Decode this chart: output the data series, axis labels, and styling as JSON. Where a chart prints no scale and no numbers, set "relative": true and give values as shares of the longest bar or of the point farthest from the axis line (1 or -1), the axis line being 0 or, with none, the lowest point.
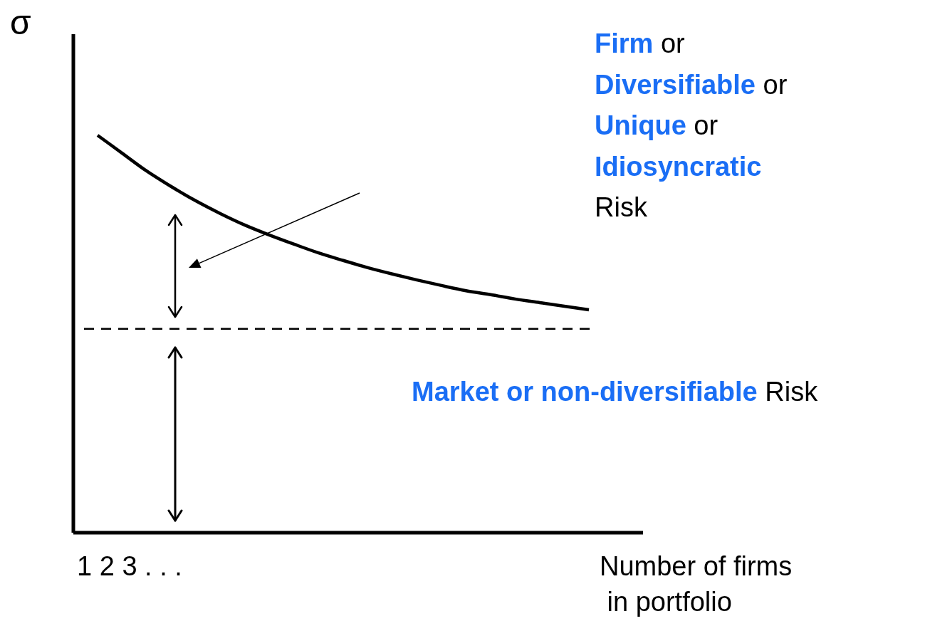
{
  "chart_data": {
    "type": "line",
    "relative": true,
    "ylabel": "σ",
    "xlabel": "Number of firms\n in portfolio",
    "color": "#000000",
    "line_style": "solid",
    "categories": [
      null,
      null,
      null,
      null,
      null,
      null,
      null,
      null,
      null,
      null,
      null,
      null,
      null,
      null,
      null,
      null,
      null,
      null,
      null,
      null,
      null,
      null,
      null,
      null
    ],
    "values": [
      null,
      1.0,
      0.955,
      0.91,
      0.871,
      0.835,
      0.803,
      0.774,
      0.749,
      0.726,
      0.704,
      0.685,
      0.667,
      0.651,
      0.636,
      0.622,
      0.609,
      0.599,
      0.588,
      0.579,
      0.57,
      0.561,
      null,
      null
    ],
    "ref_lines": [
      {
        "axis": "y",
        "value": 0.513,
        "line_style": "dashed",
        "color": "#000000"
      }
    ],
    "annotations": [
      "Firm or Diversifiable or Unique or Idiosyncratic Risk",
      "Market or non-diversifiable Risk",
      "1 2 3 . . ."
    ]
  }
}
